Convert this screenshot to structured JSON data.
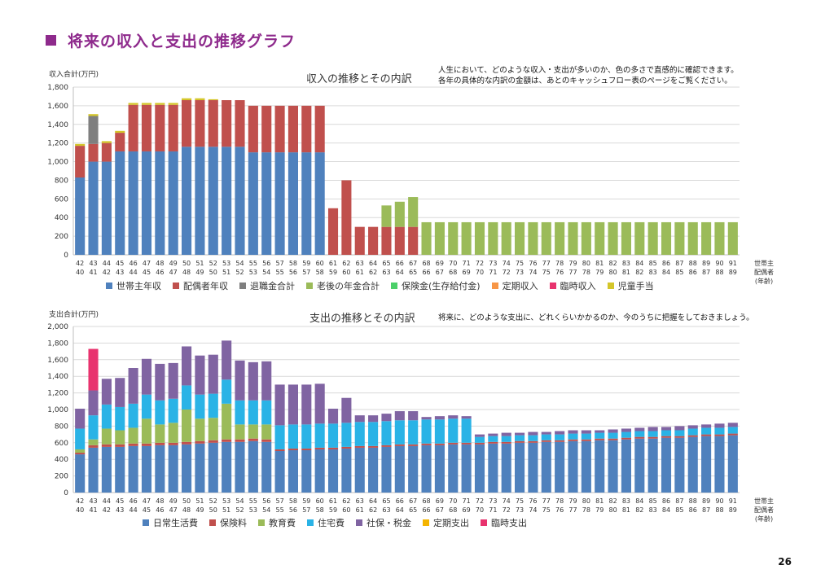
{
  "page": {
    "heading": "将来の収入と支出の推移グラフ",
    "page_number": "26",
    "colors": {
      "heading": "#8e2a8c"
    }
  },
  "income": {
    "chart_title": "収入の推移とその内訳",
    "note_lines": [
      "人生において、どのような収入・支出が多いのか、色の多さで直感的に確認できます。",
      "各年の具体的な内訳の金額は、あとのキャッシュフロー表のページをご覧ください。"
    ],
    "axis_label_right": [
      "世帯主",
      "配偶者",
      "(年齢)"
    ]
  },
  "expense": {
    "chart_title": "支出の推移とその内訳",
    "note_lines": [
      "将来に、どのような支出に、どれくらいかかるのか、今のうちに把握をしておきましょう。"
    ],
    "axis_label_right": [
      "世帯主",
      "配偶者",
      "(年齢)"
    ]
  },
  "chart_data": [
    {
      "type": "bar",
      "stacked": true,
      "title": "収入の推移とその内訳",
      "ylabel": "収入合計(万円)",
      "ylim": [
        0,
        1800
      ],
      "ytick_step": 200,
      "grid": true,
      "legend_position": "bottom",
      "categories_primary": [
        42,
        43,
        44,
        45,
        46,
        47,
        48,
        49,
        50,
        51,
        52,
        53,
        54,
        55,
        56,
        57,
        58,
        59,
        60,
        61,
        62,
        63,
        64,
        65,
        66,
        67,
        68,
        69,
        70,
        71,
        72,
        73,
        74,
        75,
        76,
        77,
        78,
        79,
        80,
        81,
        82,
        83,
        84,
        85,
        86,
        87,
        88,
        89,
        90,
        91
      ],
      "categories_secondary": [
        40,
        41,
        42,
        43,
        44,
        45,
        46,
        47,
        48,
        49,
        50,
        51,
        52,
        53,
        54,
        55,
        56,
        57,
        58,
        59,
        60,
        61,
        62,
        63,
        64,
        65,
        66,
        67,
        68,
        69,
        70,
        71,
        72,
        73,
        74,
        75,
        76,
        77,
        78,
        79,
        80,
        81,
        82,
        83,
        84,
        85,
        86,
        87,
        88,
        89
      ],
      "series": [
        {
          "name": "世帯主年収",
          "color": "#4f81bd",
          "values": [
            830,
            1000,
            1000,
            1110,
            1110,
            1110,
            1110,
            1110,
            1160,
            1160,
            1160,
            1160,
            1160,
            1100,
            1100,
            1100,
            1100,
            1100,
            1100,
            0,
            0,
            0,
            0,
            0,
            0,
            0,
            0,
            0,
            0,
            0,
            0,
            0,
            0,
            0,
            0,
            0,
            0,
            0,
            0,
            0,
            0,
            0,
            0,
            0,
            0,
            0,
            0,
            0,
            0,
            0
          ]
        },
        {
          "name": "配偶者年収",
          "color": "#c0504d",
          "values": [
            340,
            190,
            200,
            200,
            500,
            500,
            500,
            500,
            500,
            500,
            500,
            500,
            500,
            500,
            500,
            500,
            500,
            500,
            500,
            500,
            800,
            300,
            300,
            300,
            300,
            300,
            0,
            0,
            0,
            0,
            0,
            0,
            0,
            0,
            0,
            0,
            0,
            0,
            0,
            0,
            0,
            0,
            0,
            0,
            0,
            0,
            0,
            0,
            0,
            0
          ]
        },
        {
          "name": "退職金合計",
          "color": "#7f7f7f",
          "values": [
            0,
            300,
            0,
            0,
            0,
            0,
            0,
            0,
            0,
            0,
            0,
            0,
            0,
            0,
            0,
            0,
            0,
            0,
            0,
            0,
            0,
            0,
            0,
            0,
            0,
            0,
            0,
            0,
            0,
            0,
            0,
            0,
            0,
            0,
            0,
            0,
            0,
            0,
            0,
            0,
            0,
            0,
            0,
            0,
            0,
            0,
            0,
            0,
            0,
            0
          ]
        },
        {
          "name": "老後の年金合計",
          "color": "#9bbb59",
          "values": [
            0,
            0,
            0,
            0,
            0,
            0,
            0,
            0,
            0,
            0,
            0,
            0,
            0,
            0,
            0,
            0,
            0,
            0,
            0,
            0,
            0,
            0,
            0,
            230,
            270,
            320,
            350,
            350,
            350,
            350,
            350,
            350,
            350,
            350,
            350,
            350,
            350,
            350,
            350,
            350,
            350,
            350,
            350,
            350,
            350,
            350,
            350,
            350,
            350,
            350
          ]
        },
        {
          "name": "保険金(生存給付金)",
          "color": "#4cd06a",
          "values": [
            0,
            0,
            0,
            0,
            0,
            0,
            0,
            0,
            0,
            0,
            0,
            0,
            0,
            0,
            0,
            0,
            0,
            0,
            0,
            0,
            0,
            0,
            0,
            0,
            0,
            0,
            0,
            0,
            0,
            0,
            0,
            0,
            0,
            0,
            0,
            0,
            0,
            0,
            0,
            0,
            0,
            0,
            0,
            0,
            0,
            0,
            0,
            0,
            0,
            0
          ]
        },
        {
          "name": "定期収入",
          "color": "#f79646",
          "values": [
            0,
            0,
            0,
            0,
            0,
            0,
            0,
            0,
            0,
            0,
            0,
            0,
            0,
            0,
            0,
            0,
            0,
            0,
            0,
            0,
            0,
            0,
            0,
            0,
            0,
            0,
            0,
            0,
            0,
            0,
            0,
            0,
            0,
            0,
            0,
            0,
            0,
            0,
            0,
            0,
            0,
            0,
            0,
            0,
            0,
            0,
            0,
            0,
            0,
            0
          ]
        },
        {
          "name": "臨時収入",
          "color": "#e8336e",
          "values": [
            0,
            0,
            0,
            0,
            0,
            0,
            0,
            0,
            0,
            0,
            0,
            0,
            0,
            0,
            0,
            0,
            0,
            0,
            0,
            0,
            0,
            0,
            0,
            0,
            0,
            0,
            0,
            0,
            0,
            0,
            0,
            0,
            0,
            0,
            0,
            0,
            0,
            0,
            0,
            0,
            0,
            0,
            0,
            0,
            0,
            0,
            0,
            0,
            0,
            0
          ]
        },
        {
          "name": "児童手当",
          "color": "#d4c62a",
          "values": [
            20,
            20,
            20,
            20,
            20,
            20,
            20,
            20,
            20,
            20,
            10,
            0,
            0,
            0,
            0,
            0,
            0,
            0,
            0,
            0,
            0,
            0,
            0,
            0,
            0,
            0,
            0,
            0,
            0,
            0,
            0,
            0,
            0,
            0,
            0,
            0,
            0,
            0,
            0,
            0,
            0,
            0,
            0,
            0,
            0,
            0,
            0,
            0,
            0,
            0
          ]
        }
      ]
    },
    {
      "type": "bar",
      "stacked": true,
      "title": "支出の推移とその内訳",
      "ylabel": "支出合計(万円)",
      "ylim": [
        0,
        2000
      ],
      "ytick_step": 200,
      "grid": true,
      "legend_position": "bottom",
      "categories_primary": [
        42,
        43,
        44,
        45,
        46,
        47,
        48,
        49,
        50,
        51,
        52,
        53,
        54,
        55,
        56,
        57,
        58,
        59,
        60,
        61,
        62,
        63,
        64,
        65,
        66,
        67,
        68,
        69,
        70,
        71,
        72,
        73,
        74,
        75,
        76,
        77,
        78,
        79,
        80,
        81,
        82,
        83,
        84,
        85,
        86,
        87,
        88,
        89,
        90,
        91
      ],
      "categories_secondary": [
        40,
        41,
        42,
        43,
        44,
        45,
        46,
        47,
        48,
        49,
        50,
        51,
        52,
        53,
        54,
        55,
        56,
        57,
        58,
        59,
        60,
        61,
        62,
        63,
        64,
        65,
        66,
        67,
        68,
        69,
        70,
        71,
        72,
        73,
        74,
        75,
        76,
        77,
        78,
        79,
        80,
        81,
        82,
        83,
        84,
        85,
        86,
        87,
        88,
        89
      ],
      "series": [
        {
          "name": "日常生活費",
          "color": "#4f81bd",
          "values": [
            460,
            540,
            550,
            550,
            560,
            560,
            570,
            570,
            580,
            590,
            600,
            610,
            610,
            620,
            610,
            500,
            510,
            510,
            520,
            520,
            530,
            540,
            540,
            550,
            560,
            560,
            570,
            570,
            580,
            580,
            580,
            590,
            590,
            600,
            600,
            610,
            610,
            620,
            620,
            630,
            630,
            640,
            650,
            650,
            660,
            660,
            670,
            680,
            680,
            690
          ]
        },
        {
          "name": "保険料",
          "color": "#c0504d",
          "values": [
            20,
            30,
            30,
            30,
            30,
            30,
            30,
            30,
            30,
            30,
            30,
            30,
            30,
            30,
            30,
            20,
            20,
            20,
            20,
            20,
            20,
            20,
            20,
            20,
            20,
            20,
            20,
            20,
            20,
            20,
            20,
            20,
            20,
            20,
            20,
            20,
            20,
            20,
            20,
            20,
            20,
            20,
            20,
            20,
            20,
            20,
            20,
            20,
            20,
            20
          ]
        },
        {
          "name": "教育費",
          "color": "#9bbb59",
          "values": [
            40,
            70,
            190,
            170,
            190,
            300,
            220,
            240,
            390,
            270,
            270,
            430,
            180,
            170,
            180,
            0,
            0,
            0,
            0,
            0,
            0,
            0,
            0,
            0,
            0,
            0,
            0,
            0,
            0,
            0,
            0,
            0,
            0,
            0,
            0,
            0,
            0,
            0,
            0,
            0,
            0,
            0,
            0,
            0,
            0,
            0,
            0,
            0,
            0,
            0
          ]
        },
        {
          "name": "住宅費",
          "color": "#2ab3e6",
          "values": [
            250,
            290,
            290,
            280,
            290,
            290,
            290,
            290,
            290,
            290,
            290,
            290,
            290,
            290,
            290,
            290,
            290,
            290,
            290,
            290,
            290,
            290,
            290,
            290,
            290,
            290,
            290,
            290,
            290,
            290,
            70,
            70,
            70,
            70,
            70,
            70,
            70,
            70,
            70,
            70,
            70,
            70,
            70,
            70,
            70,
            70,
            80,
            80,
            80,
            80
          ]
        },
        {
          "name": "社保・税金",
          "color": "#8064a2",
          "values": [
            240,
            300,
            310,
            350,
            430,
            430,
            440,
            430,
            470,
            470,
            470,
            470,
            480,
            460,
            470,
            490,
            480,
            480,
            480,
            180,
            300,
            80,
            80,
            90,
            110,
            110,
            30,
            40,
            40,
            30,
            30,
            30,
            40,
            30,
            40,
            30,
            40,
            40,
            40,
            30,
            40,
            40,
            40,
            50,
            40,
            50,
            40,
            40,
            50,
            50
          ]
        },
        {
          "name": "定期支出",
          "color": "#f4b400",
          "values": [
            0,
            0,
            0,
            0,
            0,
            0,
            0,
            0,
            0,
            0,
            0,
            0,
            0,
            0,
            0,
            0,
            0,
            0,
            0,
            0,
            0,
            0,
            0,
            0,
            0,
            0,
            0,
            0,
            0,
            0,
            0,
            0,
            0,
            0,
            0,
            0,
            0,
            0,
            0,
            0,
            0,
            0,
            0,
            0,
            0,
            0,
            0,
            0,
            0,
            0
          ]
        },
        {
          "name": "臨時支出",
          "color": "#e8336e",
          "values": [
            0,
            500,
            0,
            0,
            0,
            0,
            0,
            0,
            0,
            0,
            0,
            0,
            0,
            0,
            0,
            0,
            0,
            0,
            0,
            0,
            0,
            0,
            0,
            0,
            0,
            0,
            0,
            0,
            0,
            0,
            0,
            0,
            0,
            0,
            0,
            0,
            0,
            0,
            0,
            0,
            0,
            0,
            0,
            0,
            0,
            0,
            0,
            0,
            0,
            0
          ]
        }
      ]
    }
  ]
}
